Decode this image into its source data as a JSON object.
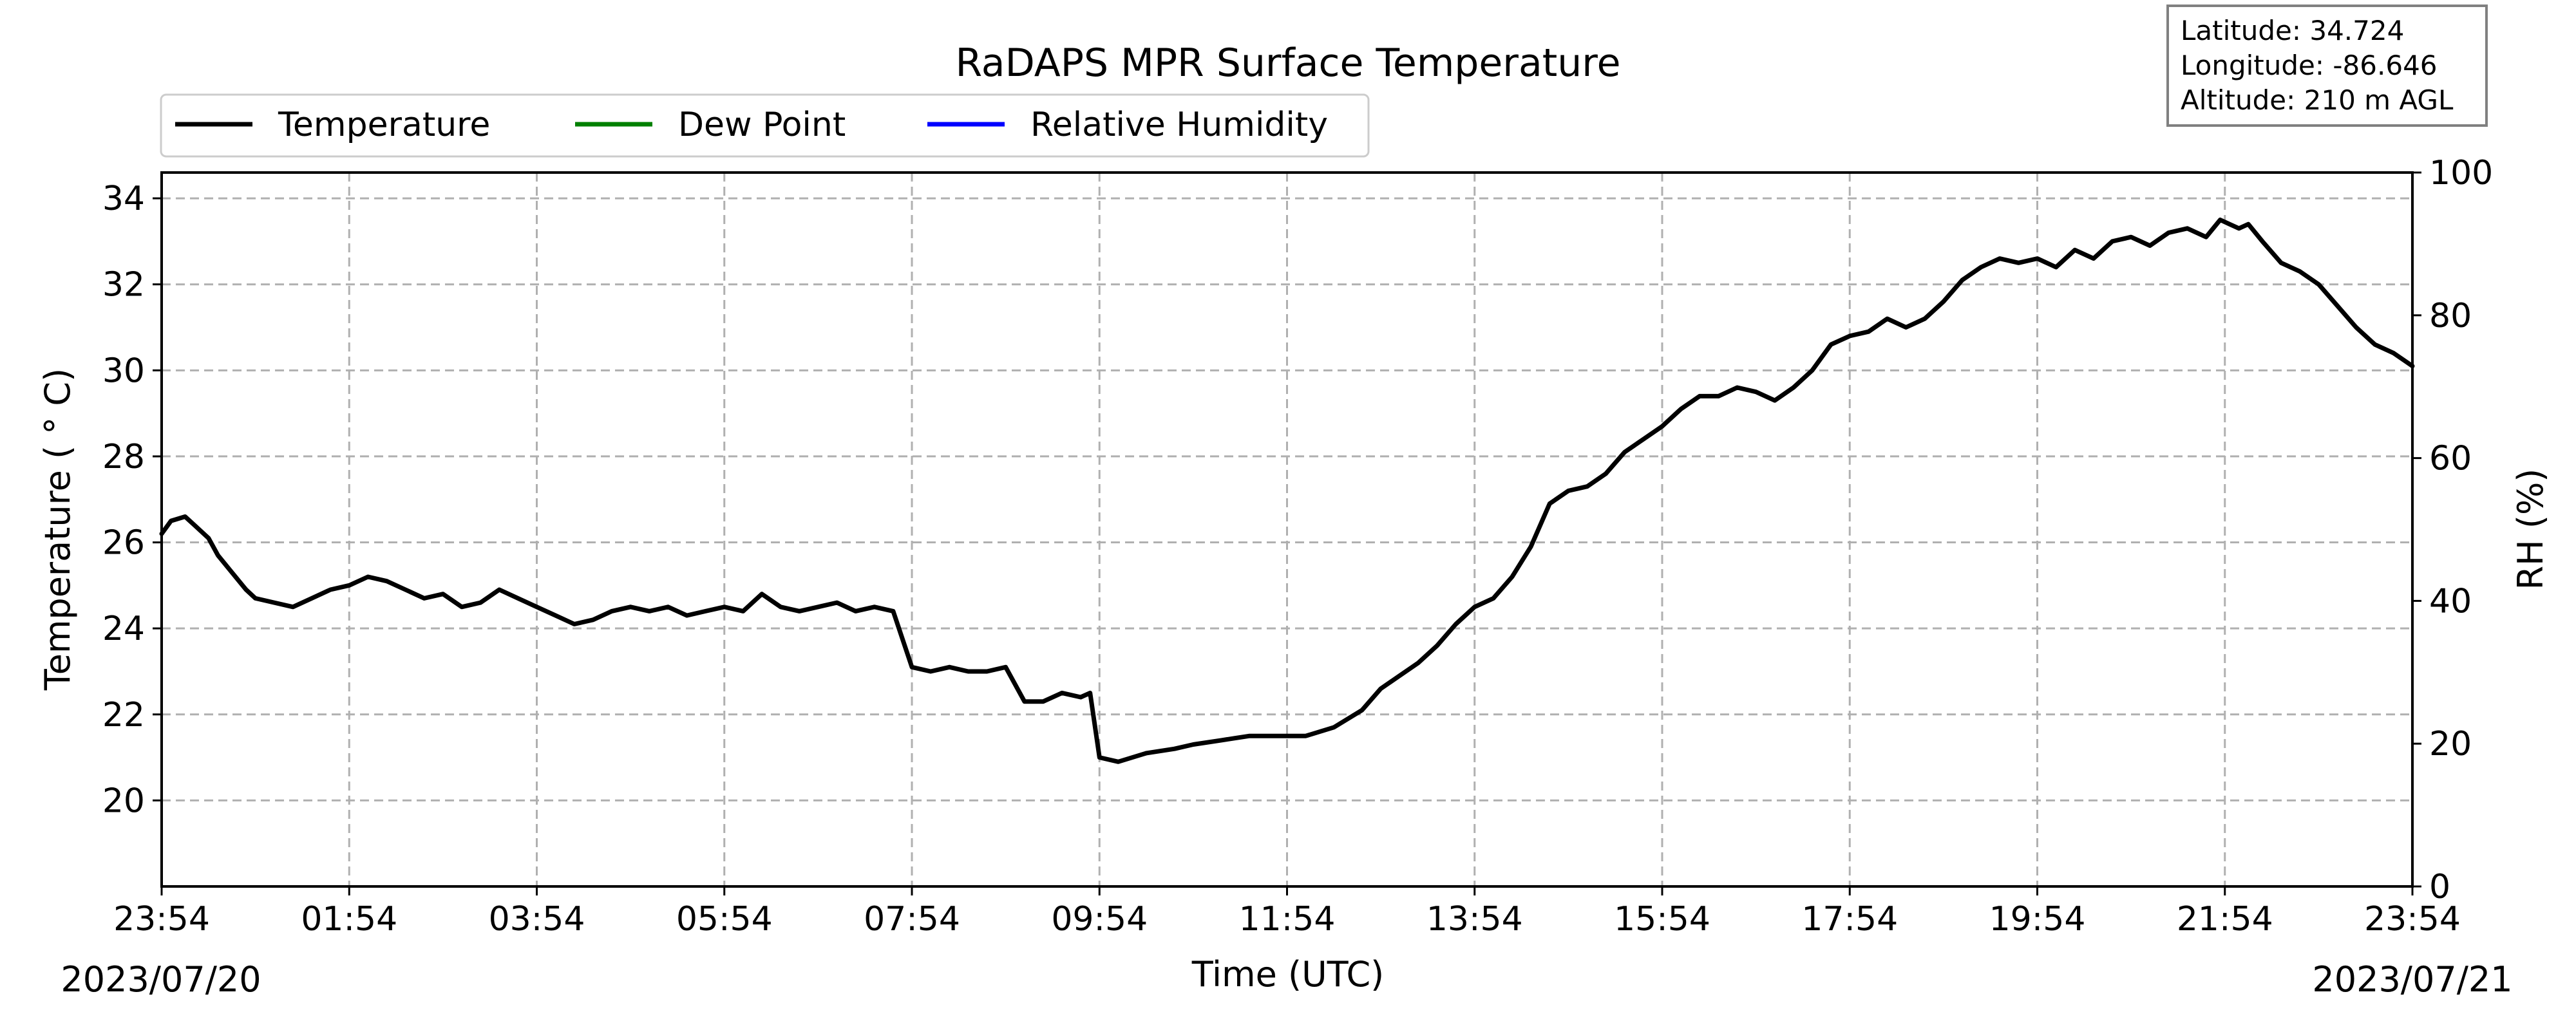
{
  "chart_data": {
    "type": "line",
    "title": "RaDAPS MPR Surface Temperature",
    "xlabel": "Time (UTC)",
    "ylabel_left": "Temperature ($^\\circ$C)",
    "ylabel_left_display": "Temperature ( ° C)",
    "ylabel_right": "RH (%)",
    "x_tick_labels": [
      "23:54",
      "01:54",
      "03:54",
      "05:54",
      "07:54",
      "09:54",
      "11:54",
      "13:54",
      "15:54",
      "17:54",
      "19:54",
      "21:54",
      "23:54"
    ],
    "x_tick_hours": [
      0,
      2,
      4,
      6,
      8,
      10,
      12,
      14,
      16,
      18,
      20,
      22,
      24
    ],
    "x_range_hours": [
      0,
      24
    ],
    "start_date": "2023/07/20",
    "end_date": "2023/07/21",
    "y_left_range": [
      18.0,
      34.6
    ],
    "y_left_ticks": [
      20,
      22,
      24,
      26,
      28,
      30,
      32,
      34
    ],
    "y_right_range": [
      0,
      100
    ],
    "y_right_ticks": [
      0,
      20,
      40,
      60,
      80,
      100
    ],
    "grid": true,
    "legend_placement": "top-left, above plot",
    "info_box": [
      "Latitude: 34.724",
      "Longitude: -86.646",
      "Altitude: 210 m AGL"
    ],
    "series": [
      {
        "name": "Temperature",
        "axis": "left",
        "color": "#000000",
        "x": [
          0.0,
          0.1,
          0.25,
          0.35,
          0.5,
          0.6,
          0.75,
          0.9,
          1.0,
          1.2,
          1.4,
          1.6,
          1.8,
          2.0,
          2.2,
          2.4,
          2.6,
          2.8,
          3.0,
          3.2,
          3.4,
          3.6,
          3.8,
          4.0,
          4.2,
          4.4,
          4.6,
          4.8,
          5.0,
          5.2,
          5.4,
          5.6,
          5.8,
          6.0,
          6.2,
          6.4,
          6.6,
          6.8,
          7.0,
          7.2,
          7.4,
          7.6,
          7.8,
          8.0,
          8.2,
          8.4,
          8.6,
          8.8,
          9.0,
          9.2,
          9.4,
          9.6,
          9.8,
          9.9,
          10.0,
          10.2,
          10.5,
          10.8,
          11.0,
          11.3,
          11.6,
          11.9,
          12.2,
          12.5,
          12.8,
          13.0,
          13.2,
          13.4,
          13.6,
          13.8,
          14.0,
          14.2,
          14.4,
          14.6,
          14.8,
          15.0,
          15.2,
          15.4,
          15.6,
          15.8,
          16.0,
          16.2,
          16.4,
          16.6,
          16.8,
          17.0,
          17.2,
          17.4,
          17.6,
          17.8,
          18.0,
          18.2,
          18.4,
          18.6,
          18.8,
          19.0,
          19.2,
          19.4,
          19.6,
          19.8,
          20.0,
          20.2,
          20.4,
          20.6,
          20.8,
          21.0,
          21.2,
          21.4,
          21.6,
          21.8,
          21.95,
          22.05,
          22.15,
          22.25,
          22.4,
          22.6,
          22.8,
          23.0,
          23.2,
          23.4,
          23.6,
          23.8,
          24.0
        ],
        "values": [
          26.2,
          26.5,
          26.6,
          26.4,
          26.1,
          25.7,
          25.3,
          24.9,
          24.7,
          24.6,
          24.5,
          24.7,
          24.9,
          25.0,
          25.2,
          25.1,
          24.9,
          24.7,
          24.8,
          24.5,
          24.6,
          24.9,
          24.7,
          24.5,
          24.3,
          24.1,
          24.2,
          24.4,
          24.5,
          24.4,
          24.5,
          24.3,
          24.4,
          24.5,
          24.4,
          24.8,
          24.5,
          24.4,
          24.5,
          24.6,
          24.4,
          24.5,
          24.4,
          23.1,
          23.0,
          23.1,
          23.0,
          23.0,
          23.1,
          22.3,
          22.3,
          22.5,
          22.4,
          22.5,
          21.0,
          20.9,
          21.1,
          21.2,
          21.3,
          21.4,
          21.5,
          21.5,
          21.5,
          21.7,
          22.1,
          22.6,
          22.9,
          23.2,
          23.6,
          24.1,
          24.5,
          24.7,
          25.2,
          25.9,
          26.9,
          27.2,
          27.3,
          27.6,
          28.1,
          28.4,
          28.7,
          29.1,
          29.4,
          29.4,
          29.6,
          29.5,
          29.3,
          29.6,
          30.0,
          30.6,
          30.8,
          30.9,
          31.2,
          31.0,
          31.2,
          31.6,
          32.1,
          32.4,
          32.6,
          32.5,
          32.6,
          32.4,
          32.8,
          32.6,
          33.0,
          33.1,
          32.9,
          33.2,
          33.3,
          33.1,
          33.5,
          33.4,
          33.3,
          33.4,
          33.0,
          32.5,
          32.3,
          32.0,
          31.5,
          31.0,
          30.6,
          30.4,
          30.1
        ],
        "note_x": "hours since 23:54 2023/07/20"
      }
    ]
  },
  "labels": {
    "title": "RaDAPS MPR Surface Temperature",
    "xlabel": "Time (UTC)",
    "ylabel_left": "Temperature ( ° C)",
    "ylabel_right": "RH (%)",
    "start_date": "2023/07/20",
    "end_date": "2023/07/21",
    "legend": [
      "Temperature",
      "Dew Point",
      "Relative Humidity"
    ],
    "info_box": [
      "Latitude: 34.724",
      "Longitude: -86.646",
      "Altitude: 210 m AGL"
    ]
  }
}
